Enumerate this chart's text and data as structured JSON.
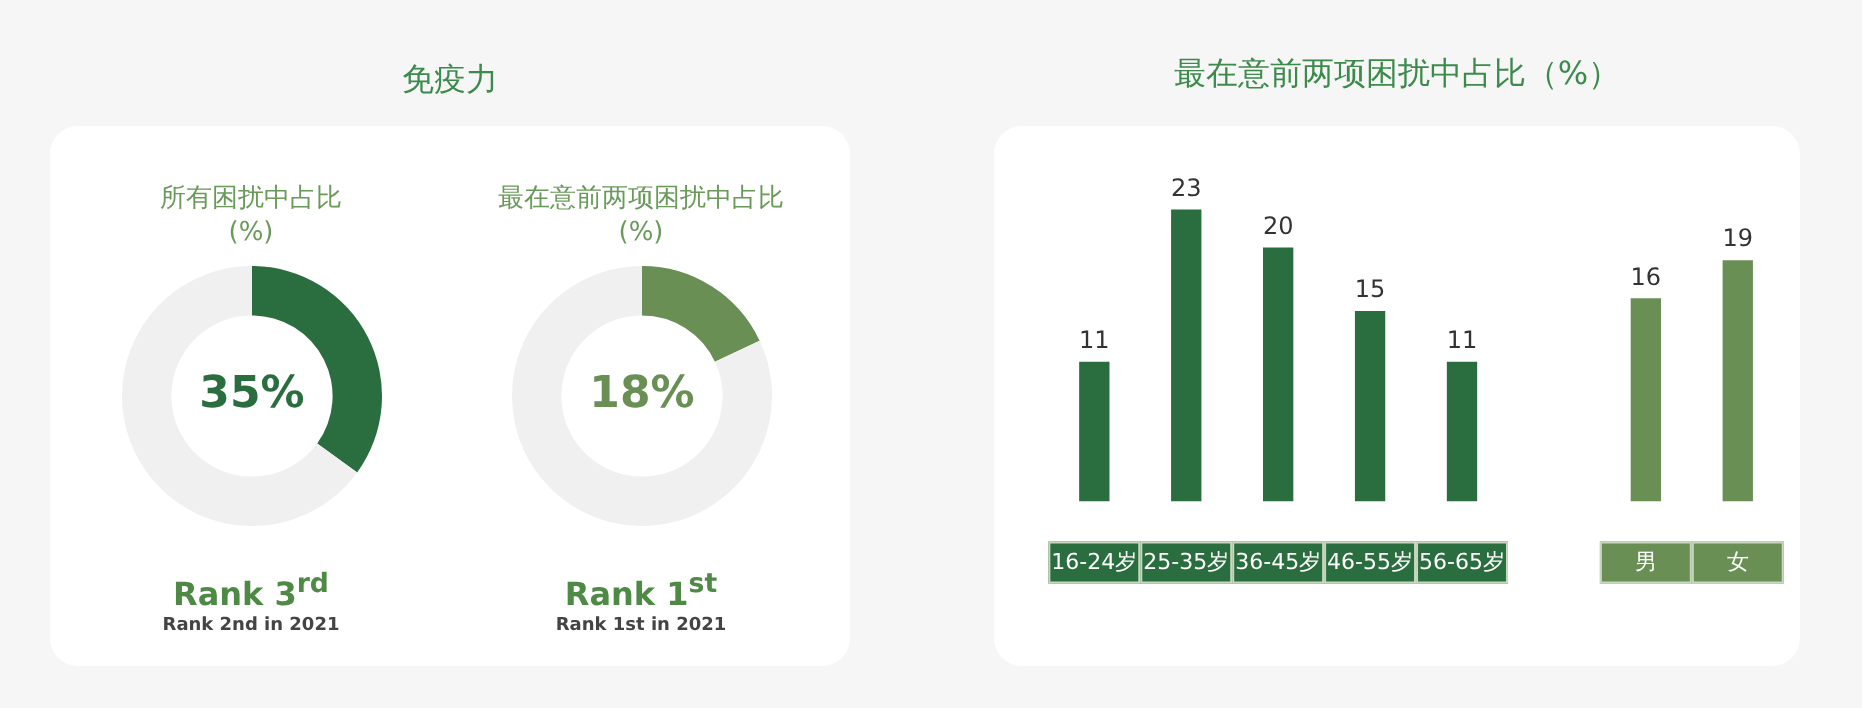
{
  "chart_data": [
    {
      "type": "donut",
      "title": "免疫力",
      "subtitle": "所有困扰中占比\n(%)",
      "categories": [
        null,
        null
      ],
      "values": [
        35,
        65
      ],
      "colors": [
        "#2a6e3f",
        "#f0f0f0"
      ],
      "value_labels": [
        "35%",
        null
      ],
      "legend": false,
      "annotations": [
        "Rank 3$^{rd}$",
        "Rank 2nd in 2021"
      ]
    },
    {
      "type": "donut",
      "subtitle": "最在意前两项困扰中占比\n(%)",
      "categories": [
        null,
        null
      ],
      "values": [
        18,
        82
      ],
      "colors": [
        "#6a8f55",
        "#f0f0f0"
      ],
      "value_labels": [
        "18%",
        null
      ],
      "legend": false,
      "annotations": [
        "Rank 1$^{st}$",
        "Rank 1st in 2021"
      ]
    },
    {
      "type": "bar",
      "title": "最在意前两项困扰中占比（%）",
      "categories": [
        "16-24岁",
        "25-35岁",
        "36-45岁",
        "46-55岁",
        "56-65岁",
        null,
        "男",
        "女"
      ],
      "series": [
        {
          "color": "#2a6e3f",
          "values": [
            11,
            23,
            20,
            15,
            11,
            null,
            null,
            null
          ]
        },
        {
          "color": "#6a8f55",
          "values": [
            null,
            null,
            null,
            null,
            null,
            null,
            16,
            19
          ]
        }
      ],
      "data_labels": true,
      "legend": false,
      "grid": false
    }
  ]
}
